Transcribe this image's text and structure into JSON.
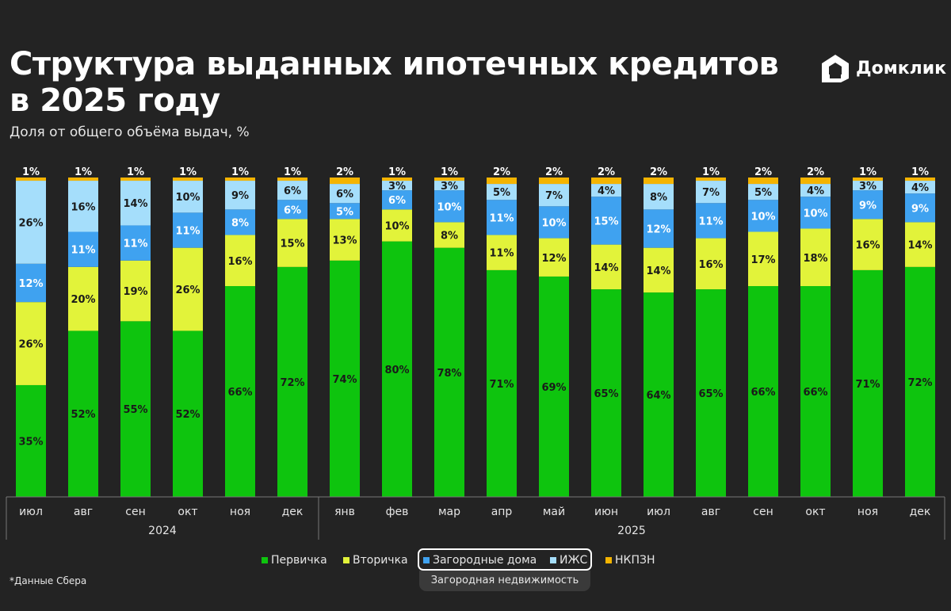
{
  "title": "Структура выданных ипотечных кредитов в 2025 году",
  "subtitle": "Доля от общего объёма выдач, %",
  "logo": {
    "text": "Домклик",
    "icon": "house-logo-icon"
  },
  "footnote": "*Данные Сбера",
  "legend_group_label": "Загородная недвижимость",
  "chart_data": {
    "type": "bar",
    "stacked": true,
    "percent": true,
    "categories": [
      "июл",
      "авг",
      "сен",
      "окт",
      "ноя",
      "дек",
      "янв",
      "фев",
      "мар",
      "апр",
      "май",
      "июн",
      "июл",
      "авг",
      "сен",
      "окт",
      "ноя",
      "дек"
    ],
    "year_groups": [
      {
        "label": "2024",
        "count": 6
      },
      {
        "label": "2025",
        "count": 12
      }
    ],
    "series": [
      {
        "name": "Первичка",
        "color": "#0ec40e",
        "values": [
          35,
          52,
          55,
          52,
          66,
          72,
          74,
          80,
          78,
          71,
          69,
          65,
          64,
          65,
          66,
          66,
          71,
          72
        ]
      },
      {
        "name": "Вторичка",
        "color": "#e2f33a",
        "values": [
          26,
          20,
          19,
          26,
          16,
          15,
          13,
          10,
          8,
          11,
          12,
          14,
          14,
          16,
          17,
          18,
          16,
          14
        ]
      },
      {
        "name": "Загородные дома",
        "color": "#3fa2f0",
        "values": [
          12,
          11,
          11,
          11,
          8,
          6,
          5,
          6,
          10,
          11,
          10,
          15,
          12,
          11,
          10,
          10,
          9,
          9
        ]
      },
      {
        "name": "ИЖС",
        "color": "#a5defb",
        "values": [
          26,
          16,
          14,
          10,
          9,
          6,
          6,
          3,
          3,
          5,
          7,
          4,
          8,
          7,
          5,
          4,
          3,
          4
        ]
      },
      {
        "name": "НКПЗН",
        "color": "#f4b400",
        "values": [
          1,
          1,
          1,
          1,
          1,
          1,
          2,
          1,
          1,
          2,
          2,
          2,
          2,
          1,
          2,
          2,
          1,
          1
        ]
      }
    ],
    "label_colors": [
      "#1a1a1a",
      "#1a1a1a",
      "#ffffff",
      "#1a1a1a",
      "#ffffff"
    ],
    "ylim": [
      0,
      100
    ],
    "grid": false,
    "legend_position": "bottom"
  }
}
